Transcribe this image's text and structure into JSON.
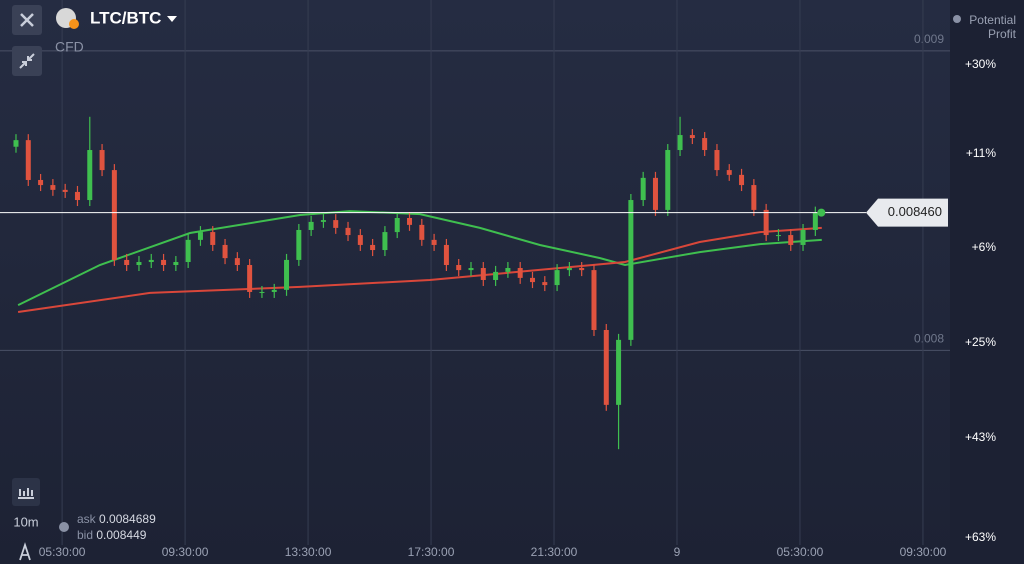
{
  "header": {
    "symbol": "LTC/BTC",
    "instrument": "CFD",
    "potential_profit": "Potential Profit"
  },
  "toolbar": {
    "timeframe": "10m"
  },
  "quote": {
    "ask_label": "ask",
    "ask": "0.0084689",
    "bid_label": "bid",
    "bid": "0.008449"
  },
  "profit_scale": [
    "+30%",
    "+11%",
    "+6%",
    "+25%",
    "+43%",
    "+63%"
  ],
  "chart_data": {
    "type": "candlestick",
    "xlim": [
      3.48,
      34.38
    ],
    "ylim": [
      0.00735,
      0.00917
    ],
    "yticks": [
      0.009,
      0.008
    ],
    "xticks": [
      {
        "value": 5.5,
        "label": "05:30:00"
      },
      {
        "value": 9.5,
        "label": "09:30:00"
      },
      {
        "value": 13.5,
        "label": "13:30:00"
      },
      {
        "value": 17.5,
        "label": "17:30:00"
      },
      {
        "value": 21.5,
        "label": "21:30:00"
      },
      {
        "value": 25.5,
        "label": "9"
      },
      {
        "value": 29.5,
        "label": "05:30:00"
      },
      {
        "value": 33.5,
        "label": "09:30:00"
      }
    ],
    "grid": true,
    "up_color": "#3fbf4f",
    "down_color": "#e0533f",
    "current_price": {
      "value": 0.00846,
      "label": "0.008460"
    },
    "x": [
      4.0,
      4.4,
      4.8,
      5.2,
      5.6,
      6.0,
      6.4,
      6.8,
      7.2,
      7.6,
      8.0,
      8.4,
      8.8,
      9.2,
      9.6,
      10.0,
      10.4,
      10.8,
      11.2,
      11.6,
      12.0,
      12.4,
      12.8,
      13.2,
      13.6,
      14.0,
      14.4,
      14.8,
      15.2,
      15.6,
      16.0,
      16.4,
      16.8,
      17.2,
      17.6,
      18.0,
      18.4,
      18.8,
      19.2,
      19.6,
      20.0,
      20.4,
      20.8,
      21.2,
      21.6,
      22.0,
      22.4,
      22.8,
      23.2,
      23.6,
      24.0,
      24.4,
      24.8,
      25.2,
      25.6,
      26.0,
      26.4,
      26.8,
      27.2,
      27.6,
      28.0,
      28.4,
      28.8,
      29.2,
      29.6,
      30.0
    ],
    "open": [
      0.00868,
      0.008702,
      0.008569,
      0.008552,
      0.008536,
      0.008529,
      0.008502,
      0.008669,
      0.008602,
      0.008302,
      0.008285,
      0.008295,
      0.008302,
      0.008285,
      0.008295,
      0.008369,
      0.008395,
      0.008352,
      0.008308,
      0.008285,
      0.008195,
      0.008195,
      0.008202,
      0.008302,
      0.008402,
      0.008429,
      0.008435,
      0.008409,
      0.008385,
      0.008352,
      0.008335,
      0.008395,
      0.008442,
      0.008419,
      0.008369,
      0.008352,
      0.008285,
      0.008268,
      0.008275,
      0.008235,
      0.008262,
      0.008275,
      0.008242,
      0.008228,
      0.008218,
      0.008268,
      0.008275,
      0.008268,
      0.008068,
      0.007818,
      0.008035,
      0.008502,
      0.008576,
      0.008469,
      0.008669,
      0.008719,
      0.008709,
      0.008669,
      0.008602,
      0.008586,
      0.008552,
      0.008469,
      0.008385,
      0.008385,
      0.008352,
      0.008402
    ],
    "high": [
      0.008722,
      0.008722,
      0.008589,
      0.008572,
      0.008556,
      0.008549,
      0.00878,
      0.008689,
      0.008622,
      0.008322,
      0.008315,
      0.008322,
      0.008322,
      0.008315,
      0.008389,
      0.008415,
      0.008415,
      0.008372,
      0.008328,
      0.008305,
      0.008215,
      0.008222,
      0.008322,
      0.008422,
      0.008449,
      0.008455,
      0.008455,
      0.008429,
      0.008405,
      0.008372,
      0.008415,
      0.008462,
      0.008462,
      0.008439,
      0.008389,
      0.008372,
      0.008305,
      0.008295,
      0.008295,
      0.008282,
      0.008295,
      0.008295,
      0.008262,
      0.008248,
      0.008288,
      0.008295,
      0.008295,
      0.008288,
      0.008088,
      0.008055,
      0.008522,
      0.008596,
      0.008596,
      0.008689,
      0.00878,
      0.008739,
      0.008729,
      0.008689,
      0.008622,
      0.008606,
      0.008572,
      0.008489,
      0.008405,
      0.008405,
      0.008422,
      0.00848
    ],
    "low": [
      0.00866,
      0.008549,
      0.008532,
      0.008516,
      0.008509,
      0.008482,
      0.008482,
      0.008582,
      0.008282,
      0.008265,
      0.008265,
      0.008275,
      0.008265,
      0.008265,
      0.008275,
      0.008349,
      0.008332,
      0.008288,
      0.008265,
      0.008175,
      0.008175,
      0.008175,
      0.008182,
      0.008282,
      0.008382,
      0.008409,
      0.008389,
      0.008365,
      0.008332,
      0.008315,
      0.008315,
      0.008375,
      0.008399,
      0.008349,
      0.008332,
      0.008265,
      0.008248,
      0.008248,
      0.008215,
      0.008215,
      0.008242,
      0.008222,
      0.008208,
      0.008198,
      0.008198,
      0.008248,
      0.008248,
      0.008048,
      0.007798,
      0.00767,
      0.008015,
      0.008482,
      0.008449,
      0.008449,
      0.008649,
      0.008689,
      0.008649,
      0.008582,
      0.008566,
      0.008532,
      0.008449,
      0.008365,
      0.008365,
      0.008332,
      0.008332,
      0.008382
    ],
    "close": [
      0.008702,
      0.008569,
      0.008552,
      0.008536,
      0.008529,
      0.008502,
      0.008669,
      0.008602,
      0.008302,
      0.008285,
      0.008295,
      0.008302,
      0.008285,
      0.008295,
      0.008369,
      0.008395,
      0.008352,
      0.008308,
      0.008285,
      0.008195,
      0.008195,
      0.008202,
      0.008302,
      0.008402,
      0.008429,
      0.008435,
      0.008409,
      0.008385,
      0.008352,
      0.008335,
      0.008395,
      0.008442,
      0.008419,
      0.008369,
      0.008352,
      0.008285,
      0.008268,
      0.008275,
      0.008235,
      0.008262,
      0.008275,
      0.008242,
      0.008228,
      0.008218,
      0.008268,
      0.008275,
      0.008268,
      0.008068,
      0.007818,
      0.008035,
      0.008502,
      0.008576,
      0.008469,
      0.008669,
      0.008719,
      0.008709,
      0.008669,
      0.008602,
      0.008586,
      0.008552,
      0.008469,
      0.008385,
      0.008385,
      0.008352,
      0.008402,
      0.00846
    ],
    "lines": [
      {
        "color": "#3fbf4f",
        "x": [
          4.07,
          6.73,
          9.66,
          13.24,
          14.86,
          17.14,
          19.09,
          21.04,
          23.0,
          23.81,
          26.24,
          28.2,
          30.21
        ],
        "values": [
          0.008151,
          0.008285,
          0.008392,
          0.008452,
          0.008465,
          0.008455,
          0.008409,
          0.008352,
          0.008308,
          0.008285,
          0.008328,
          0.008355,
          0.008369
        ]
      },
      {
        "color": "#d9473a",
        "x": [
          4.07,
          8.36,
          13.24,
          17.46,
          21.69,
          23.81,
          26.24,
          28.2,
          30.21
        ],
        "values": [
          0.008128,
          0.008192,
          0.008212,
          0.008235,
          0.008275,
          0.008295,
          0.008362,
          0.008395,
          0.008409
        ]
      }
    ]
  }
}
